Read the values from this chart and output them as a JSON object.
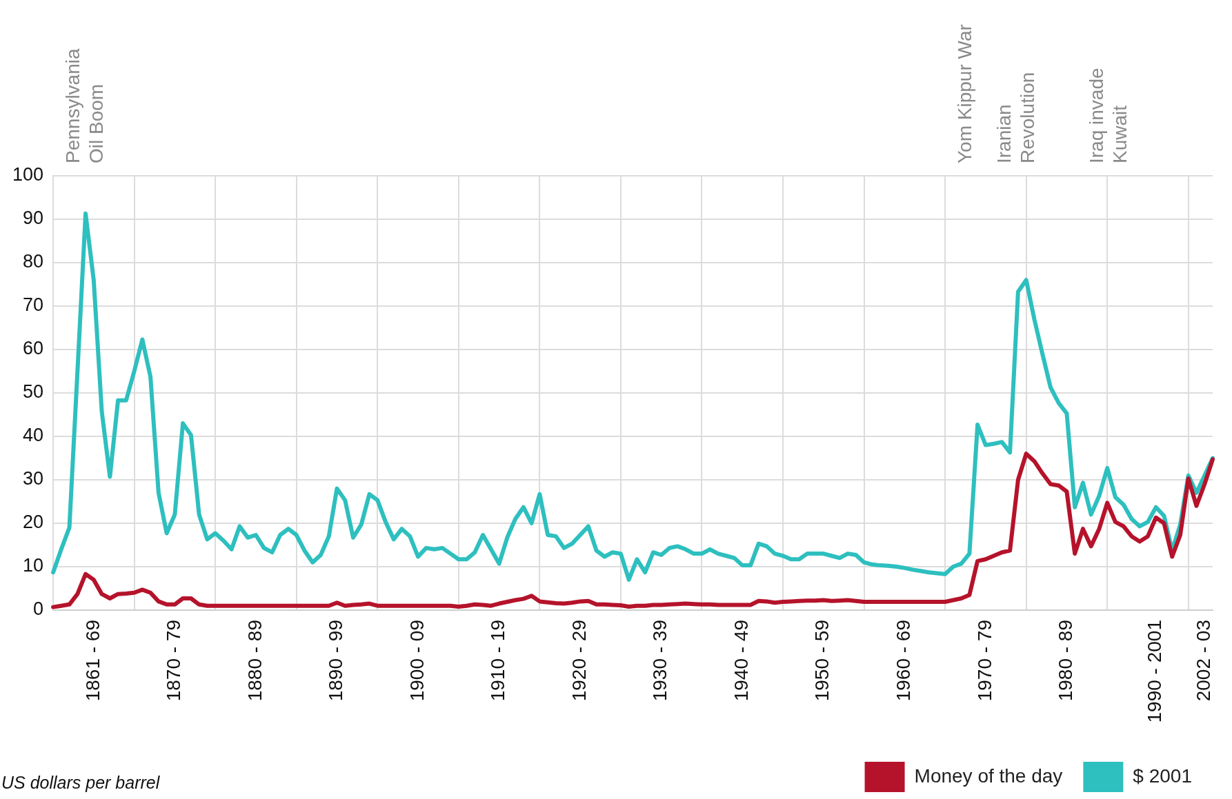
{
  "chart_data": {
    "type": "line",
    "ylabel": "US dollars per barrel",
    "annotations": [
      "Pennsylvania\nOil Boom",
      "Yom Kippur War",
      "Iranian\nRevolution",
      "Iraq invade\nKuwait"
    ],
    "categories": [
      null,
      null,
      null,
      null,
      null,
      "1861 - 69",
      null,
      null,
      null,
      null,
      null,
      null,
      null,
      null,
      null,
      "1870 - 79",
      null,
      null,
      null,
      null,
      null,
      null,
      null,
      null,
      null,
      "1880 - 89",
      null,
      null,
      null,
      null,
      null,
      null,
      null,
      null,
      null,
      "1890 - 99",
      null,
      null,
      null,
      null,
      null,
      null,
      null,
      null,
      null,
      "1900 - 09",
      null,
      null,
      null,
      null,
      null,
      null,
      null,
      null,
      null,
      "1910 - 19",
      null,
      null,
      null,
      null,
      null,
      null,
      null,
      null,
      null,
      "1920 - 29",
      null,
      null,
      null,
      null,
      null,
      null,
      null,
      null,
      null,
      "1930 - 39",
      null,
      null,
      null,
      null,
      null,
      null,
      null,
      null,
      null,
      "1940 - 49",
      null,
      null,
      null,
      null,
      null,
      null,
      null,
      null,
      null,
      "1950 - 59",
      null,
      null,
      null,
      null,
      null,
      null,
      null,
      null,
      null,
      "1960 - 69",
      null,
      null,
      null,
      null,
      null,
      null,
      null,
      null,
      null,
      "1970 - 79",
      null,
      null,
      null,
      null,
      null,
      null,
      null,
      null,
      null,
      "1980 - 89",
      null,
      null,
      null,
      null,
      null,
      null,
      null,
      null,
      null,
      null,
      "1990 - 2001",
      null,
      null,
      null,
      null,
      null,
      "2002 - 03",
      null
    ],
    "ylim": [
      0,
      100
    ],
    "yticks": [
      0,
      10,
      20,
      30,
      40,
      50,
      60,
      70,
      80,
      90,
      100
    ],
    "grid": true,
    "legend": "bottom right",
    "marker": "none",
    "line_style": "solid",
    "series": [
      {
        "name": "Money of the day",
        "color": "#b5132b",
        "values": [
          0.7,
          1,
          1.3,
          3.7,
          8.3,
          7,
          3.7,
          2.7,
          3.7,
          3.8,
          4,
          4.7,
          4,
          2,
          1.3,
          1.3,
          2.7,
          2.7,
          1.3,
          1,
          1,
          1,
          1,
          1,
          1,
          1,
          1,
          1,
          1,
          1,
          1,
          1,
          1,
          1,
          1,
          1.7,
          1,
          1.2,
          1.3,
          1.5,
          1,
          1,
          1,
          1,
          1,
          1,
          1,
          1,
          1,
          1,
          0.8,
          1,
          1.3,
          1.2,
          1,
          1.5,
          1.9,
          2.3,
          2.6,
          3.3,
          2,
          1.8,
          1.6,
          1.5,
          1.7,
          2,
          2.1,
          1.3,
          1.3,
          1.2,
          1.1,
          0.8,
          1,
          1,
          1.2,
          1.2,
          1.3,
          1.4,
          1.5,
          1.4,
          1.3,
          1.3,
          1.2,
          1.2,
          1.2,
          1.2,
          1.2,
          2.1,
          2,
          1.7,
          1.9,
          2,
          2.1,
          2.2,
          2.2,
          2.3,
          2.1,
          2.2,
          2.3,
          2.1,
          1.9,
          1.9,
          1.9,
          1.9,
          1.9,
          1.9,
          1.9,
          1.9,
          1.9,
          1.9,
          1.9,
          2.3,
          2.7,
          3.5,
          11.3,
          11.7,
          12.5,
          13.3,
          13.7,
          30,
          36,
          34.3,
          31.5,
          29,
          28.7,
          27.3,
          13,
          18.7,
          14.7,
          18.7,
          24.7,
          20.3,
          19.3,
          17,
          15.8,
          17,
          21.3,
          20,
          12.3,
          17.3,
          30.3,
          24,
          29,
          34.7
        ]
      },
      {
        "name": "$ 2001",
        "color": "#2ebfbf",
        "values": [
          8.7,
          14,
          19,
          55,
          91.3,
          76,
          45.7,
          30.7,
          48.3,
          48.3,
          55,
          62.3,
          53.7,
          27,
          17.7,
          22,
          43,
          40.3,
          22,
          16.3,
          17.7,
          16,
          14,
          19.3,
          16.7,
          17.3,
          14.3,
          13.3,
          17.3,
          18.7,
          17.3,
          13.7,
          11,
          12.7,
          17,
          28,
          25.3,
          16.7,
          19.7,
          26.7,
          25.3,
          20.3,
          16.3,
          18.7,
          17,
          12.3,
          14.3,
          14,
          14.3,
          13,
          11.7,
          11.7,
          13.3,
          17.3,
          14,
          10.7,
          16.7,
          21,
          23.7,
          20,
          26.7,
          17.3,
          17,
          14.3,
          15.3,
          17.3,
          19.3,
          13.7,
          12.3,
          13.3,
          13,
          7,
          11.7,
          8.7,
          13.3,
          12.7,
          14.3,
          14.7,
          14,
          13,
          13,
          14,
          13,
          12.5,
          12,
          10.3,
          10.3,
          15.3,
          14.7,
          13,
          12.5,
          11.7,
          11.7,
          13,
          13,
          13,
          12.5,
          12,
          13,
          12.7,
          11,
          10.5,
          10.3,
          10.2,
          10,
          9.7,
          9.3,
          9,
          8.7,
          8.5,
          8.3,
          10,
          10.7,
          13,
          42.7,
          38,
          38.3,
          38.7,
          36.3,
          73.3,
          76,
          67,
          59,
          51.3,
          47.7,
          45.3,
          23.7,
          29.3,
          22,
          26.3,
          32.7,
          26,
          24.3,
          21,
          19.3,
          20.3,
          23.7,
          21.7,
          13.7,
          19.7,
          31,
          27,
          31,
          35
        ]
      }
    ]
  }
}
